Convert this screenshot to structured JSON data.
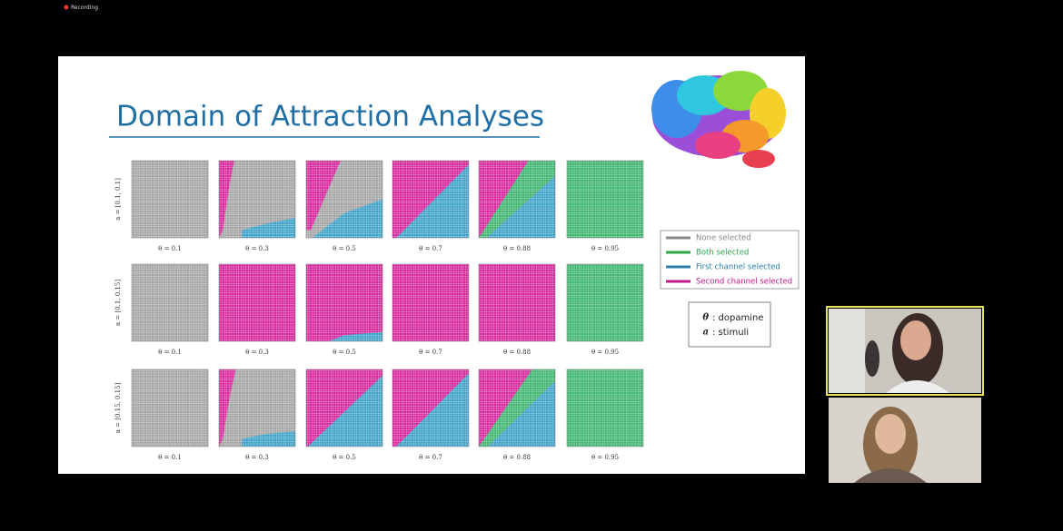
{
  "recording": "Recording",
  "slide": {
    "title": "Domain of Attraction Analyses",
    "rows": [
      {
        "label": "a = [0.1, 0.1]",
        "panels": [
          "θ = 0.1",
          "θ = 0.3",
          "θ = 0.5",
          "θ = 0.7",
          "θ = 0.88",
          "θ = 0.95"
        ]
      },
      {
        "label": "a = [0.1, 0.15]",
        "panels": [
          "θ = 0.1",
          "θ = 0.3",
          "θ = 0.5",
          "θ = 0.7",
          "θ = 0.88",
          "θ = 0.95"
        ]
      },
      {
        "label": "a = [0.15, 0.15]",
        "panels": [
          "θ = 0.1",
          "θ = 0.3",
          "θ = 0.5",
          "θ = 0.7",
          "θ = 0.88",
          "θ = 0.95"
        ]
      }
    ],
    "legend": [
      "None selected",
      "Both selected",
      "First channel selected",
      "Second channel selected"
    ],
    "notes": [
      {
        "symbol": "θ",
        "text": ": dopamine"
      },
      {
        "symbol": "a",
        "text": ": stimuli"
      }
    ]
  }
}
